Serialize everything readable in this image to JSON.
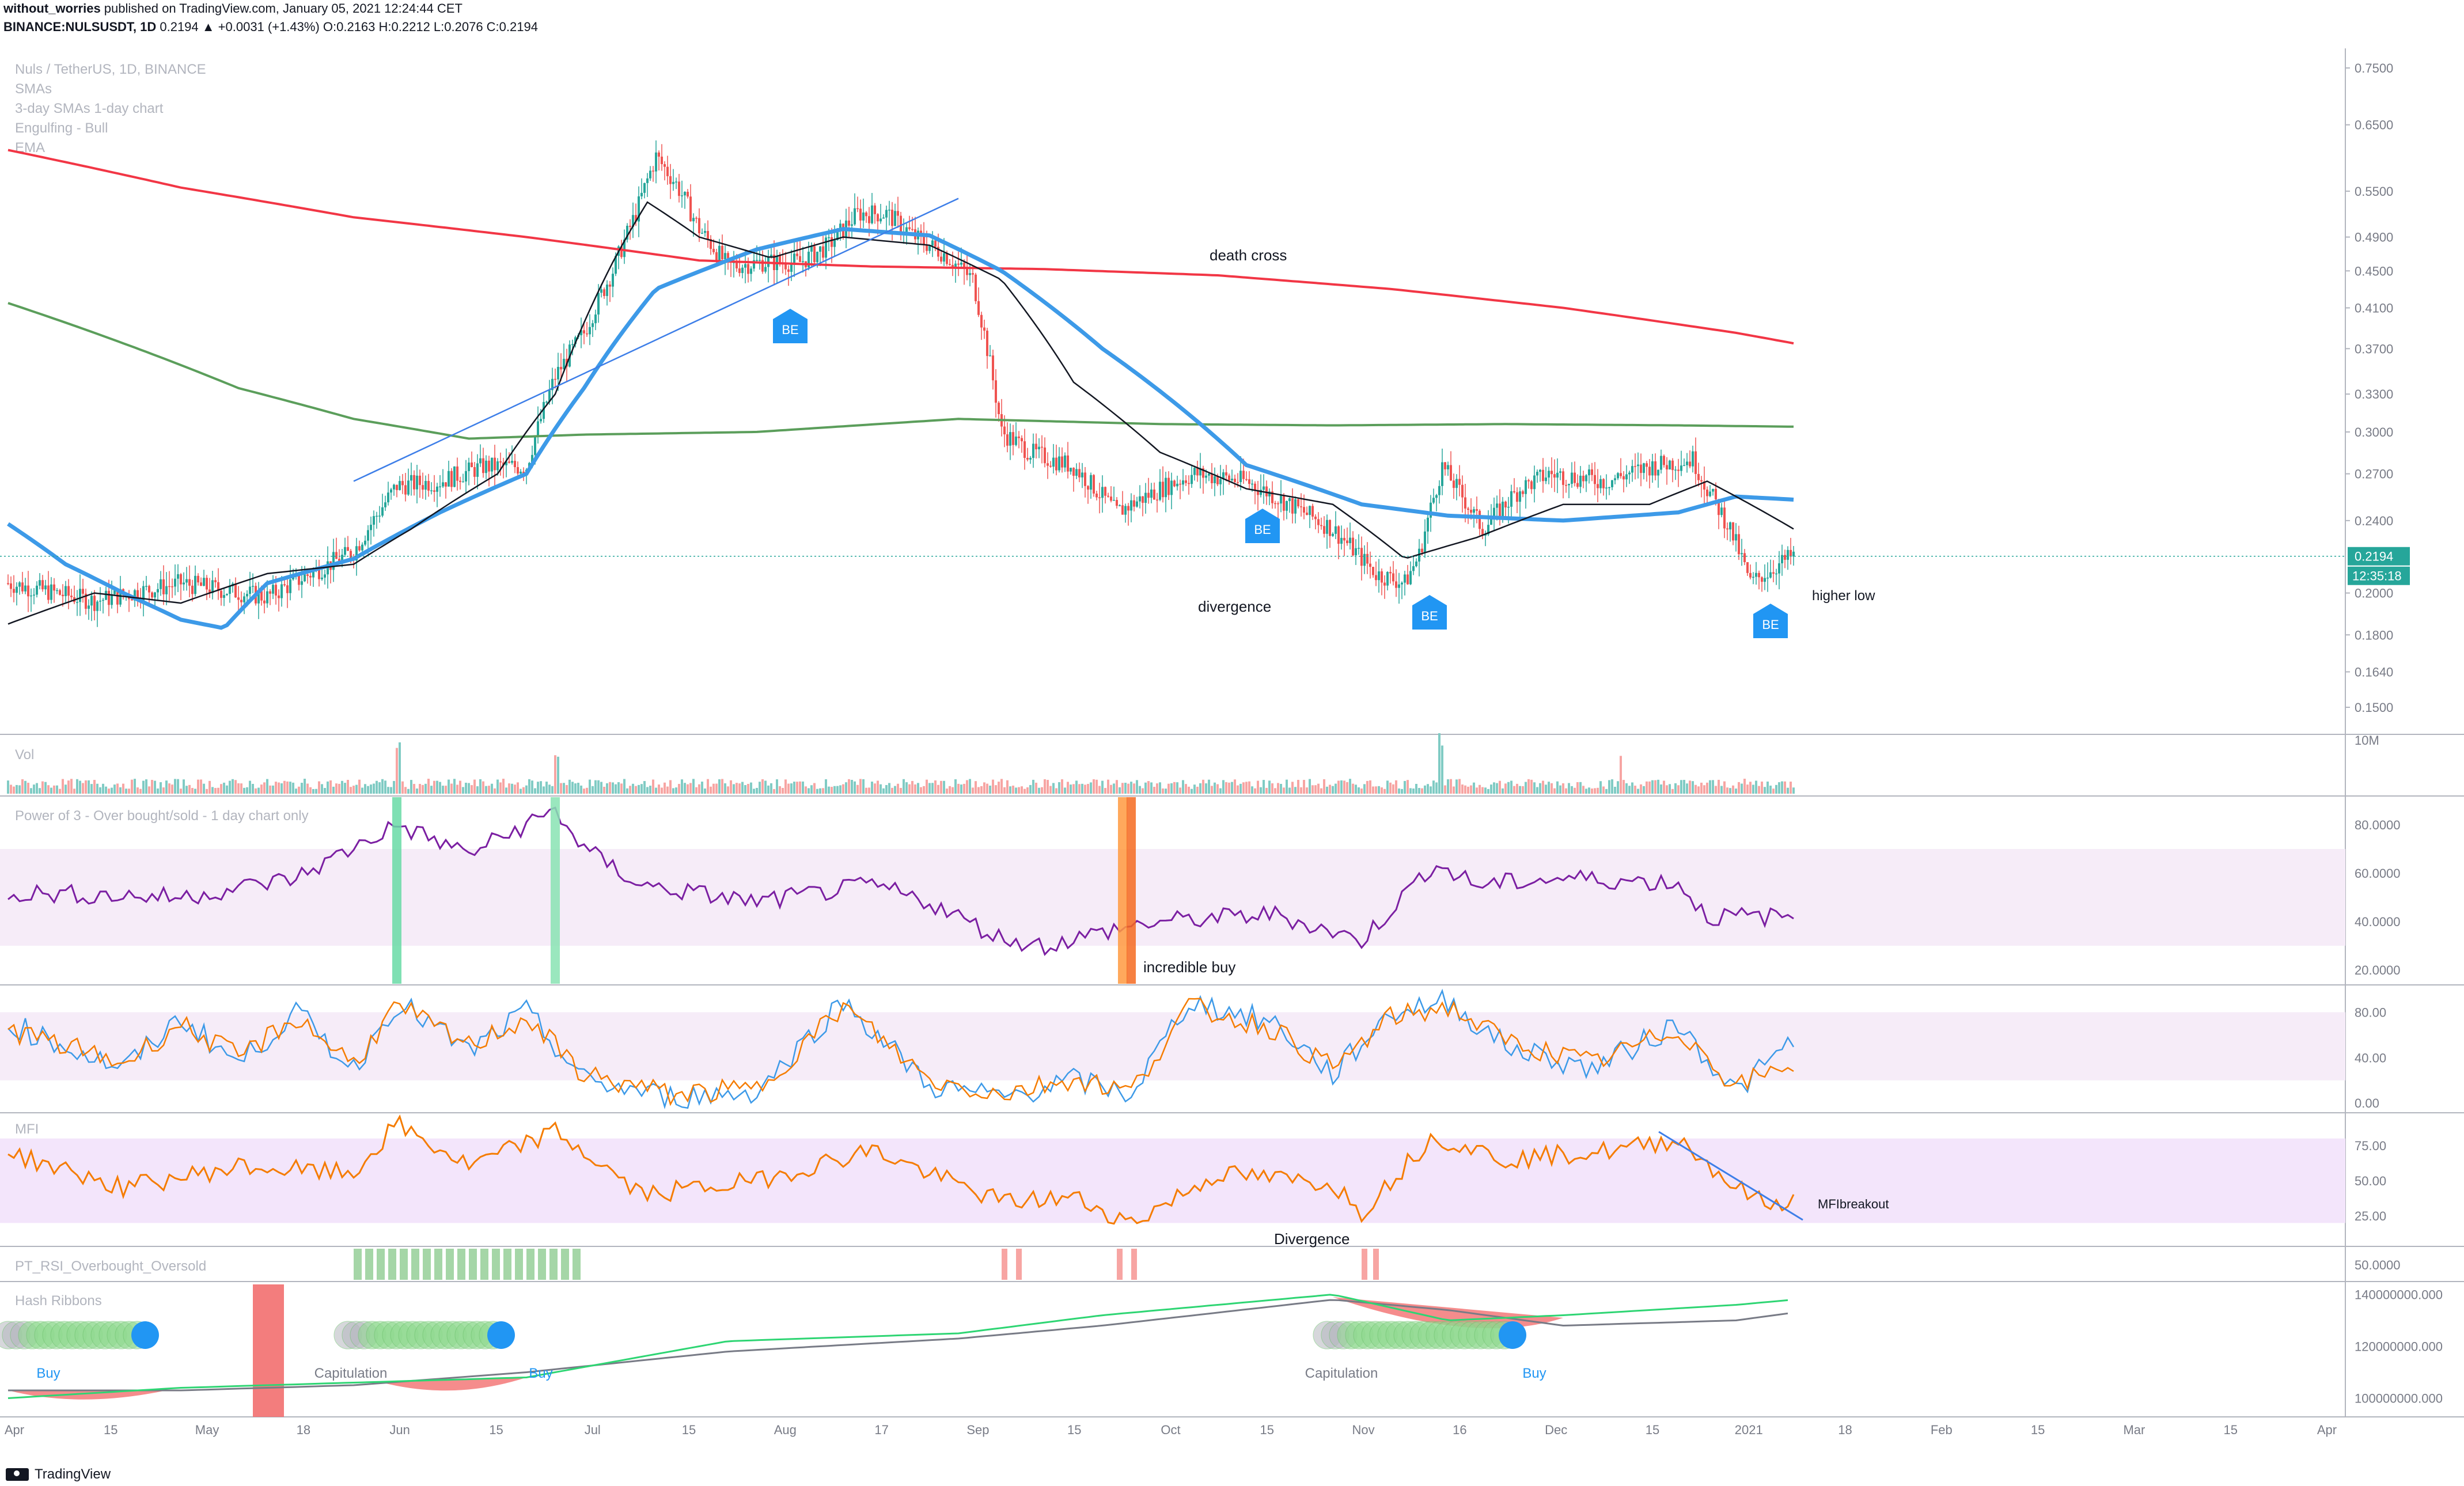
{
  "header": {
    "line1_author": "without_worries",
    "line1_rest": " published on TradingView.com, January 05, 2021 12:24:44 CET",
    "line2_symbol": "BINANCE:NULSUSDT, 1D",
    "line2_rest": " 0.2194 ▲ +0.0031 (+1.43%) O:0.2163 H:0.2212 L:0.2076 C:0.2194"
  },
  "footer": {
    "brand": "TradingView"
  },
  "chart_data": {
    "type": "candlestick",
    "legend_lines": [
      "Nuls / TetherUS, 1D, BINANCE",
      "SMAs",
      "3-day SMAs 1-day chart",
      "Engulfing - Bull",
      "EMA"
    ],
    "price_axis": {
      "ticks": [
        "0.7500",
        "0.6500",
        "0.5500",
        "0.4900",
        "0.4500",
        "0.4100",
        "0.3700",
        "0.3300",
        "0.3000",
        "0.2700",
        "0.2400",
        "0.2000",
        "0.1800",
        "0.1640",
        "0.1500"
      ],
      "last_price": "0.2194",
      "countdown": "12:35:18",
      "scale": "log"
    },
    "time_axis": [
      "Apr",
      "15",
      "May",
      "18",
      "Jun",
      "15",
      "Jul",
      "15",
      "Aug",
      "17",
      "Sep",
      "15",
      "Oct",
      "15",
      "Nov",
      "16",
      "Dec",
      "15",
      "2021",
      "18",
      "Feb",
      "15",
      "Mar",
      "15",
      "Apr"
    ],
    "close_approx": [
      [
        0,
        0.205
      ],
      [
        30,
        0.196
      ],
      [
        60,
        0.205
      ],
      [
        90,
        0.198
      ],
      [
        120,
        0.222
      ],
      [
        135,
        0.262
      ],
      [
        150,
        0.265
      ],
      [
        165,
        0.275
      ],
      [
        180,
        0.275
      ],
      [
        190,
        0.345
      ],
      [
        200,
        0.385
      ],
      [
        210,
        0.45
      ],
      [
        218,
        0.52
      ],
      [
        225,
        0.6
      ],
      [
        232,
        0.56
      ],
      [
        240,
        0.5
      ],
      [
        250,
        0.455
      ],
      [
        262,
        0.46
      ],
      [
        275,
        0.46
      ],
      [
        285,
        0.48
      ],
      [
        295,
        0.52
      ],
      [
        305,
        0.52
      ],
      [
        315,
        0.49
      ],
      [
        325,
        0.47
      ],
      [
        335,
        0.44
      ],
      [
        345,
        0.3
      ],
      [
        355,
        0.285
      ],
      [
        370,
        0.275
      ],
      [
        385,
        0.245
      ],
      [
        400,
        0.26
      ],
      [
        412,
        0.27
      ],
      [
        430,
        0.265
      ],
      [
        445,
        0.25
      ],
      [
        460,
        0.235
      ],
      [
        475,
        0.21
      ],
      [
        485,
        0.205
      ],
      [
        490,
        0.22
      ],
      [
        498,
        0.275
      ],
      [
        512,
        0.235
      ],
      [
        525,
        0.26
      ],
      [
        535,
        0.27
      ],
      [
        555,
        0.265
      ],
      [
        570,
        0.275
      ],
      [
        585,
        0.28
      ],
      [
        590,
        0.26
      ],
      [
        598,
        0.235
      ],
      [
        605,
        0.205
      ],
      [
        612,
        0.212
      ],
      [
        620,
        0.22
      ]
    ],
    "ema_200_approx": [
      [
        0,
        0.61
      ],
      [
        60,
        0.555
      ],
      [
        120,
        0.515
      ],
      [
        180,
        0.49
      ],
      [
        240,
        0.462
      ],
      [
        300,
        0.455
      ],
      [
        360,
        0.452
      ],
      [
        420,
        0.445
      ],
      [
        480,
        0.43
      ],
      [
        540,
        0.41
      ],
      [
        600,
        0.385
      ],
      [
        620,
        0.375
      ]
    ],
    "sma_green_approx": [
      [
        0,
        0.415
      ],
      [
        40,
        0.375
      ],
      [
        80,
        0.335
      ],
      [
        120,
        0.31
      ],
      [
        160,
        0.295
      ],
      [
        200,
        0.298
      ],
      [
        260,
        0.3
      ],
      [
        330,
        0.31
      ],
      [
        400,
        0.306
      ],
      [
        460,
        0.305
      ],
      [
        520,
        0.306
      ],
      [
        580,
        0.305
      ],
      [
        620,
        0.304
      ]
    ],
    "sma_blue_approx": [
      [
        0,
        0.238
      ],
      [
        20,
        0.215
      ],
      [
        40,
        0.2
      ],
      [
        60,
        0.187
      ],
      [
        75,
        0.183
      ],
      [
        90,
        0.205
      ],
      [
        120,
        0.218
      ],
      [
        150,
        0.245
      ],
      [
        180,
        0.27
      ],
      [
        200,
        0.335
      ],
      [
        225,
        0.43
      ],
      [
        260,
        0.475
      ],
      [
        290,
        0.5
      ],
      [
        320,
        0.492
      ],
      [
        345,
        0.45
      ],
      [
        380,
        0.37
      ],
      [
        430,
        0.276
      ],
      [
        470,
        0.25
      ],
      [
        500,
        0.243
      ],
      [
        540,
        0.24
      ],
      [
        580,
        0.245
      ],
      [
        600,
        0.255
      ],
      [
        620,
        0.253
      ]
    ],
    "sma_black_approx": [
      [
        0,
        0.185
      ],
      [
        30,
        0.2
      ],
      [
        60,
        0.195
      ],
      [
        90,
        0.21
      ],
      [
        120,
        0.215
      ],
      [
        140,
        0.235
      ],
      [
        170,
        0.27
      ],
      [
        190,
        0.33
      ],
      [
        210,
        0.46
      ],
      [
        222,
        0.535
      ],
      [
        240,
        0.49
      ],
      [
        265,
        0.465
      ],
      [
        290,
        0.49
      ],
      [
        320,
        0.48
      ],
      [
        345,
        0.44
      ],
      [
        370,
        0.34
      ],
      [
        400,
        0.285
      ],
      [
        430,
        0.26
      ],
      [
        460,
        0.25
      ],
      [
        485,
        0.218
      ],
      [
        510,
        0.23
      ],
      [
        540,
        0.25
      ],
      [
        570,
        0.25
      ],
      [
        590,
        0.265
      ],
      [
        620,
        0.235
      ]
    ],
    "annotations": [
      {
        "text": "death cross"
      },
      {
        "text": "divergence"
      },
      {
        "text": "higher low"
      },
      {
        "text": "BE"
      }
    ],
    "panes": [
      {
        "name": "Vol",
        "axis": [
          "10M"
        ]
      },
      {
        "name": "Power of 3 - Over bought/sold - 1 day chart only",
        "axis": [
          "80.0000",
          "60.0000",
          "40.0000",
          "20.0000"
        ],
        "annotation": "incredible buy"
      },
      {
        "name": "",
        "axis": [
          "80.00",
          "40.00",
          "0.00"
        ]
      },
      {
        "name": "MFI",
        "axis": [
          "75.00",
          "50.00",
          "25.00"
        ],
        "annotations": [
          "MFIbreakout",
          "Divergence"
        ]
      },
      {
        "name": "PT_RSI_Overbought_Oversold",
        "axis": [
          "50.0000"
        ]
      },
      {
        "name": "Hash Ribbons",
        "axis": [
          "140000000.000",
          "120000000.000",
          "100000000.000"
        ],
        "labels": [
          "Buy",
          "Capitulation",
          "Buy",
          "Capitulation",
          "Buy"
        ]
      }
    ]
  },
  "colors": {
    "up": "#26a69a",
    "down": "#ef5350",
    "ema200": "#f23645",
    "sma_green": "#5b9e5b",
    "sma_blue": "#3d9ae8",
    "sma_black": "#131722",
    "purple": "#7b1fa2",
    "orange": "#f57c00",
    "be_marker": "#2196f3"
  }
}
